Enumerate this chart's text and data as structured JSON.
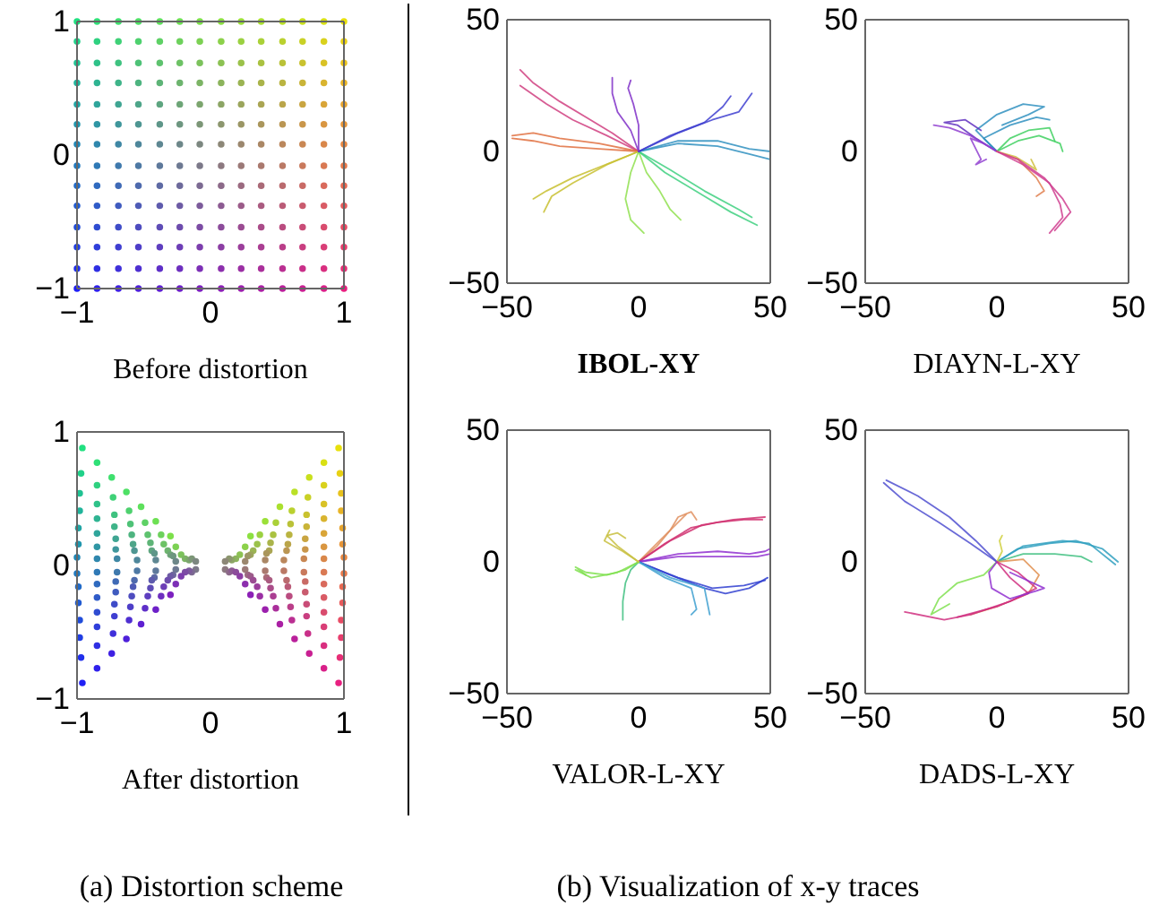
{
  "chart_data": [
    {
      "type": "scatter",
      "xlabel": "Before distortion",
      "marker": "circle",
      "annotations": [
        "(a) Distortion scheme"
      ],
      "xlim": [
        -1,
        1
      ],
      "ylim": [
        -1,
        1
      ],
      "xticks": [
        -1,
        0,
        1
      ],
      "yticks": [
        -1,
        0,
        1
      ],
      "x": [
        -1,
        -0.85,
        -0.69,
        -0.54,
        -0.38,
        -0.23,
        -0.08,
        0.08,
        0.23,
        0.38,
        0.54,
        0.69,
        0.85,
        1
      ],
      "series": [
        {
          "values": [
            1,
            1,
            1,
            1,
            1,
            1,
            1,
            1,
            1,
            1,
            1,
            1,
            1,
            1
          ],
          "colors": [
            "#20e080",
            "#2fe077",
            "#3fe06e",
            "#4ee065",
            "#5ee05c",
            "#6de053",
            "#7ce04a",
            "#8ce041",
            "#9be038",
            "#aae02f",
            "#bae026",
            "#c9e01d",
            "#d9e014",
            "#e8e00b"
          ]
        },
        {
          "values": [
            0.85,
            0.85,
            0.85,
            0.85,
            0.85,
            0.85,
            0.85,
            0.85,
            0.85,
            0.85,
            0.85,
            0.85,
            0.85,
            0.85
          ],
          "colors": [
            "#20d189",
            "#2fd180",
            "#3fd177",
            "#4ed16e",
            "#5ed165",
            "#6dd15c",
            "#7cd153",
            "#8cd14a",
            "#9bd141",
            "#aad138",
            "#bad12f",
            "#c9d126",
            "#d9d11d",
            "#e8d114"
          ]
        },
        {
          "values": [
            0.69,
            0.69,
            0.69,
            0.69,
            0.69,
            0.69,
            0.69,
            0.69,
            0.69,
            0.69,
            0.69,
            0.69,
            0.69,
            0.69
          ],
          "colors": [
            "#20c292",
            "#2fc289",
            "#3fc280",
            "#4ec277",
            "#5ec26e",
            "#6dc265",
            "#7cc25c",
            "#8cc253",
            "#9bc24a",
            "#aac241",
            "#bac238",
            "#c9c22f",
            "#d9c226",
            "#e8c21d"
          ]
        },
        {
          "values": [
            0.54,
            0.54,
            0.54,
            0.54,
            0.54,
            0.54,
            0.54,
            0.54,
            0.54,
            0.54,
            0.54,
            0.54,
            0.54,
            0.54
          ],
          "colors": [
            "#20b49b",
            "#2fb492",
            "#3fb489",
            "#4eb480",
            "#5eb477",
            "#6db46e",
            "#7cb465",
            "#8cb45c",
            "#9bb453",
            "#aab44a",
            "#bab441",
            "#c9b438",
            "#d9b42f",
            "#e8b426"
          ]
        },
        {
          "values": [
            0.38,
            0.38,
            0.38,
            0.38,
            0.38,
            0.38,
            0.38,
            0.38,
            0.38,
            0.38,
            0.38,
            0.38,
            0.38,
            0.38
          ],
          "colors": [
            "#20a5a4",
            "#2fa59b",
            "#3fa592",
            "#4ea589",
            "#5ea580",
            "#6da577",
            "#7ca56e",
            "#8ca565",
            "#9ba55c",
            "#aaa553",
            "#baa54a",
            "#c9a541",
            "#d9a538",
            "#e8a52f"
          ]
        },
        {
          "values": [
            0.23,
            0.23,
            0.23,
            0.23,
            0.23,
            0.23,
            0.23,
            0.23,
            0.23,
            0.23,
            0.23,
            0.23,
            0.23,
            0.23
          ],
          "colors": [
            "#2096ad",
            "#2f96a4",
            "#3f969b",
            "#4e9692",
            "#5e9689",
            "#6d9680",
            "#7c9677",
            "#8c966e",
            "#9b9665",
            "#aa965c",
            "#ba9653",
            "#c9964a",
            "#d99641",
            "#e89638"
          ]
        },
        {
          "values": [
            0.08,
            0.08,
            0.08,
            0.08,
            0.08,
            0.08,
            0.08,
            0.08,
            0.08,
            0.08,
            0.08,
            0.08,
            0.08,
            0.08
          ],
          "colors": [
            "#2087b6",
            "#2f87ad",
            "#3f87a4",
            "#4e879b",
            "#5e8792",
            "#6d8789",
            "#7c8780",
            "#8c8777",
            "#9b876e",
            "#aa8765",
            "#ba875c",
            "#c98753",
            "#d9874a",
            "#e88741"
          ]
        },
        {
          "values": [
            -0.08,
            -0.08,
            -0.08,
            -0.08,
            -0.08,
            -0.08,
            -0.08,
            -0.08,
            -0.08,
            -0.08,
            -0.08,
            -0.08,
            -0.08,
            -0.08
          ],
          "colors": [
            "#2079bf",
            "#2f79b6",
            "#3f79ad",
            "#4e79a4",
            "#5e799b",
            "#6d7992",
            "#7c7989",
            "#8c7980",
            "#9b7977",
            "#aa796e",
            "#ba7965",
            "#c9795c",
            "#d97953",
            "#e8794a"
          ]
        },
        {
          "values": [
            -0.23,
            -0.23,
            -0.23,
            -0.23,
            -0.23,
            -0.23,
            -0.23,
            -0.23,
            -0.23,
            -0.23,
            -0.23,
            -0.23,
            -0.23,
            -0.23
          ],
          "colors": [
            "#206ac8",
            "#2f6abf",
            "#3f6ab6",
            "#4e6aad",
            "#5e6aa4",
            "#6d6a9b",
            "#7c6a92",
            "#8c6a89",
            "#9b6a80",
            "#aa6a77",
            "#ba6a6e",
            "#c96a65",
            "#d96a5c",
            "#e86a53"
          ]
        },
        {
          "values": [
            -0.38,
            -0.38,
            -0.38,
            -0.38,
            -0.38,
            -0.38,
            -0.38,
            -0.38,
            -0.38,
            -0.38,
            -0.38,
            -0.38,
            -0.38,
            -0.38
          ],
          "colors": [
            "#205bd1",
            "#2f5bc8",
            "#3f5bbf",
            "#4e5bb6",
            "#5e5bad",
            "#6d5ba4",
            "#7c5b9b",
            "#8c5b92",
            "#9b5b89",
            "#aa5b80",
            "#ba5b77",
            "#c95b6e",
            "#d95b65",
            "#e85b5c"
          ]
        },
        {
          "values": [
            -0.54,
            -0.54,
            -0.54,
            -0.54,
            -0.54,
            -0.54,
            -0.54,
            -0.54,
            -0.54,
            -0.54,
            -0.54,
            -0.54,
            -0.54,
            -0.54
          ],
          "colors": [
            "#204cda",
            "#2f4cd1",
            "#3f4cc8",
            "#4e4cbf",
            "#5e4cb6",
            "#6d4cad",
            "#7c4ca4",
            "#8c4c9b",
            "#9b4c92",
            "#aa4c89",
            "#ba4c80",
            "#c94c77",
            "#d94c6e",
            "#e84c65"
          ]
        },
        {
          "values": [
            -0.69,
            -0.69,
            -0.69,
            -0.69,
            -0.69,
            -0.69,
            -0.69,
            -0.69,
            -0.69,
            -0.69,
            -0.69,
            -0.69,
            -0.69,
            -0.69
          ],
          "colors": [
            "#203ee3",
            "#2f3eda",
            "#3f3ed1",
            "#4e3ec8",
            "#5e3ebf",
            "#6d3eb6",
            "#7c3ead",
            "#8c3ea4",
            "#9b3e9b",
            "#aa3e92",
            "#ba3e89",
            "#c93e80",
            "#d93e77",
            "#e83e6e"
          ]
        },
        {
          "values": [
            -0.85,
            -0.85,
            -0.85,
            -0.85,
            -0.85,
            -0.85,
            -0.85,
            -0.85,
            -0.85,
            -0.85,
            -0.85,
            -0.85,
            -0.85,
            -0.85
          ],
          "colors": [
            "#202fec",
            "#2f2fe3",
            "#3f2fda",
            "#4e2fd1",
            "#5e2fc8",
            "#6d2fbf",
            "#7c2fb6",
            "#8c2fad",
            "#9b2fa4",
            "#aa2f9b",
            "#ba2f92",
            "#c92f89",
            "#d92f80",
            "#e82f77"
          ]
        },
        {
          "values": [
            -1,
            -1,
            -1,
            -1,
            -1,
            -1,
            -1,
            -1,
            -1,
            -1,
            -1,
            -1,
            -1,
            -1
          ],
          "colors": [
            "#2020f5",
            "#2f20ec",
            "#3f20e3",
            "#4e20da",
            "#5e20d1",
            "#6d20c8",
            "#7c20bf",
            "#8c20b6",
            "#9b20ad",
            "#aa20a4",
            "#ba209b",
            "#c92092",
            "#d92089",
            "#e82080"
          ]
        }
      ]
    },
    {
      "type": "scatter",
      "xlabel": "After distortion",
      "marker": "circle",
      "xlim": [
        -1,
        1
      ],
      "ylim": [
        -1,
        1
      ],
      "xticks": [
        -1,
        0,
        1
      ],
      "yticks": [
        -1,
        0,
        1
      ],
      "series": [
        {
          "x": [
            -0.96,
            -0.85,
            -0.74,
            -0.63,
            -0.52,
            -0.41,
            -0.3,
            0.3,
            0.41,
            0.52,
            0.63,
            0.74,
            0.85,
            0.96
          ],
          "values": [
            0.88,
            0.77,
            0.66,
            0.55,
            0.44,
            0.33,
            0.22,
            0.22,
            0.33,
            0.44,
            0.55,
            0.66,
            0.77,
            0.88
          ],
          "colors": [
            "#20e080",
            "#2fe077",
            "#3fe06e",
            "#4ee065",
            "#5ee05c",
            "#6de053",
            "#7ce04a",
            "#8ce041",
            "#9be038",
            "#aae02f",
            "#bae026",
            "#c9e01d",
            "#d9e014",
            "#e8e00b"
          ]
        },
        {
          "x": [
            -0.97,
            -0.85,
            -0.73,
            -0.61,
            -0.49,
            -0.37,
            -0.26,
            0.26,
            0.37,
            0.49,
            0.61,
            0.73,
            0.85,
            0.97
          ],
          "values": [
            0.69,
            0.6,
            0.51,
            0.41,
            0.32,
            0.23,
            0.14,
            0.14,
            0.23,
            0.32,
            0.41,
            0.51,
            0.6,
            0.69
          ],
          "colors": [
            "#20d189",
            "#2fd180",
            "#3fd177",
            "#4ed16e",
            "#5ed165",
            "#6dd15c",
            "#7cd153",
            "#8cd14a",
            "#9bd141",
            "#aad138",
            "#bad12f",
            "#c9d126",
            "#d9d11d",
            "#e8d114"
          ]
        },
        {
          "x": [
            -0.98,
            -0.85,
            -0.72,
            -0.6,
            -0.47,
            -0.35,
            -0.22,
            0.22,
            0.35,
            0.47,
            0.6,
            0.72,
            0.85,
            0.98
          ],
          "values": [
            0.54,
            0.46,
            0.38,
            0.31,
            0.23,
            0.16,
            0.08,
            0.08,
            0.16,
            0.23,
            0.31,
            0.38,
            0.46,
            0.54
          ],
          "colors": [
            "#20c292",
            "#2fc289",
            "#3fc280",
            "#4ec277",
            "#5ec26e",
            "#6dc265",
            "#7cc25c",
            "#8cc253",
            "#9bc24a",
            "#aac241",
            "#bac238",
            "#c9c22f",
            "#d9c226",
            "#e8c21d"
          ]
        },
        {
          "x": [
            -0.98,
            -0.85,
            -0.72,
            -0.59,
            -0.45,
            -0.32,
            -0.19,
            0.19,
            0.32,
            0.45,
            0.59,
            0.72,
            0.85,
            0.98
          ],
          "values": [
            0.41,
            0.35,
            0.29,
            0.23,
            0.17,
            0.11,
            0.05,
            0.05,
            0.11,
            0.17,
            0.23,
            0.29,
            0.35,
            0.41
          ],
          "colors": [
            "#20b49b",
            "#2fb492",
            "#3fb489",
            "#4eb480",
            "#5eb477",
            "#6db46e",
            "#7cb465",
            "#8cb45c",
            "#9bb453",
            "#aab44a",
            "#bab441",
            "#c9b438",
            "#d9b42f",
            "#e8b426"
          ]
        },
        {
          "x": [
            -0.99,
            -0.85,
            -0.71,
            -0.58,
            -0.44,
            -0.3,
            -0.16,
            0.16,
            0.3,
            0.44,
            0.58,
            0.71,
            0.85,
            0.99
          ],
          "values": [
            0.28,
            0.24,
            0.2,
            0.16,
            0.11,
            0.08,
            0.04,
            0.04,
            0.08,
            0.11,
            0.16,
            0.2,
            0.24,
            0.28
          ],
          "colors": [
            "#20a5a4",
            "#2fa59b",
            "#3fa592",
            "#4ea589",
            "#5ea580",
            "#6da577",
            "#7ca56e",
            "#8ca565",
            "#9ba55c",
            "#aaa553",
            "#baa54a",
            "#c9a541",
            "#d9a538",
            "#e8a52f"
          ]
        },
        {
          "x": [
            -0.99,
            -0.85,
            -0.71,
            -0.57,
            -0.42,
            -0.28,
            -0.14,
            0.14,
            0.28,
            0.42,
            0.57,
            0.71,
            0.85,
            0.99
          ],
          "values": [
            0.16,
            0.14,
            0.12,
            0.11,
            0.09,
            0.07,
            0.05,
            0.05,
            0.07,
            0.09,
            0.11,
            0.12,
            0.14,
            0.16
          ],
          "colors": [
            "#2096ad",
            "#2f96a4",
            "#3f969b",
            "#4e9692",
            "#5e9689",
            "#6d9680",
            "#7c9677",
            "#8c966e",
            "#9b9665",
            "#aa965c",
            "#ba9653",
            "#c9964a",
            "#d99641",
            "#e89638"
          ]
        },
        {
          "x": [
            -1,
            -0.85,
            -0.7,
            -0.55,
            -0.41,
            -0.26,
            -0.11,
            0.11,
            0.26,
            0.41,
            0.55,
            0.7,
            0.85,
            1
          ],
          "values": [
            0.06,
            0.05,
            0.05,
            0.04,
            0.04,
            0.03,
            0.03,
            0.03,
            0.03,
            0.04,
            0.04,
            0.05,
            0.05,
            0.06
          ],
          "colors": [
            "#2087b6",
            "#2f87ad",
            "#3f87a4",
            "#4e879b",
            "#5e8792",
            "#6d8789",
            "#7c8780",
            "#8c8777",
            "#9b876e",
            "#aa8765",
            "#ba875c",
            "#c98753",
            "#d9874a",
            "#e88741"
          ]
        },
        {
          "x": [
            -1,
            -0.85,
            -0.7,
            -0.55,
            -0.41,
            -0.26,
            -0.11,
            0.11,
            0.26,
            0.41,
            0.55,
            0.7,
            0.85,
            1
          ],
          "values": [
            -0.06,
            -0.05,
            -0.05,
            -0.04,
            -0.04,
            -0.03,
            -0.03,
            -0.03,
            -0.03,
            -0.04,
            -0.04,
            -0.05,
            -0.05,
            -0.06
          ],
          "colors": [
            "#2079bf",
            "#2f79b6",
            "#3f79ad",
            "#4e79a4",
            "#5e799b",
            "#6d7992",
            "#7c7989",
            "#8c7980",
            "#9b7977",
            "#aa796e",
            "#ba7965",
            "#c9795c",
            "#d97953",
            "#e8794a"
          ]
        },
        {
          "x": [
            -0.99,
            -0.85,
            -0.71,
            -0.57,
            -0.42,
            -0.28,
            -0.14,
            0.14,
            0.28,
            0.42,
            0.57,
            0.71,
            0.85,
            0.99
          ],
          "values": [
            -0.16,
            -0.14,
            -0.12,
            -0.11,
            -0.09,
            -0.07,
            -0.05,
            -0.05,
            -0.07,
            -0.09,
            -0.11,
            -0.12,
            -0.14,
            -0.16
          ],
          "colors": [
            "#206ac8",
            "#2f6abf",
            "#3f6ab6",
            "#4e6aad",
            "#5e6aa4",
            "#6d6a9b",
            "#7c6a92",
            "#8c6a89",
            "#9b6a80",
            "#aa6a77",
            "#ba6a6e",
            "#c96a65",
            "#d96a5c",
            "#e86a53"
          ]
        },
        {
          "x": [
            -0.99,
            -0.85,
            -0.71,
            -0.58,
            -0.44,
            -0.3,
            -0.16,
            0.16,
            0.3,
            0.44,
            0.58,
            0.71,
            0.85,
            0.99
          ],
          "values": [
            -0.28,
            -0.24,
            -0.2,
            -0.16,
            -0.11,
            -0.08,
            -0.04,
            -0.04,
            -0.08,
            -0.11,
            -0.16,
            -0.2,
            -0.24,
            -0.28
          ],
          "colors": [
            "#205bd1",
            "#2f5bc8",
            "#3f5bbf",
            "#4e5bb6",
            "#5e5bad",
            "#6d5ba4",
            "#7c5b9b",
            "#8c5b92",
            "#9b5b89",
            "#aa5b80",
            "#ba5b77",
            "#c95b6e",
            "#d95b65",
            "#e85b5c"
          ]
        },
        {
          "x": [
            -0.98,
            -0.85,
            -0.72,
            -0.59,
            -0.45,
            -0.32,
            -0.19,
            0.19,
            0.32,
            0.45,
            0.59,
            0.72,
            0.85,
            0.98
          ],
          "values": [
            -0.41,
            -0.35,
            -0.29,
            -0.23,
            -0.17,
            -0.11,
            -0.05,
            -0.05,
            -0.11,
            -0.17,
            -0.23,
            -0.29,
            -0.35,
            -0.41
          ],
          "colors": [
            "#204cda",
            "#2f4cd1",
            "#3f4cc8",
            "#4e4cbf",
            "#5e4cb6",
            "#6d4cad",
            "#7c4ca4",
            "#8c4c9b",
            "#9b4c92",
            "#aa4c89",
            "#ba4c80",
            "#c94c77",
            "#d94c6e",
            "#e84c65"
          ]
        },
        {
          "x": [
            -0.98,
            -0.85,
            -0.72,
            -0.6,
            -0.47,
            -0.35,
            -0.22,
            0.22,
            0.35,
            0.47,
            0.6,
            0.72,
            0.85,
            0.98
          ],
          "values": [
            -0.54,
            -0.46,
            -0.38,
            -0.31,
            -0.23,
            -0.16,
            -0.08,
            -0.08,
            -0.16,
            -0.23,
            -0.31,
            -0.38,
            -0.46,
            -0.54
          ],
          "colors": [
            "#203ee3",
            "#2f3eda",
            "#3f3ed1",
            "#4e3ec8",
            "#5e3ebf",
            "#6d3eb6",
            "#7c3ead",
            "#8c3ea4",
            "#9b3e9b",
            "#aa3e92",
            "#ba3e89",
            "#c93e80",
            "#d93e77",
            "#e83e6e"
          ]
        },
        {
          "x": [
            -0.97,
            -0.85,
            -0.73,
            -0.61,
            -0.49,
            -0.37,
            -0.26,
            0.26,
            0.37,
            0.49,
            0.61,
            0.73,
            0.85,
            0.97
          ],
          "values": [
            -0.69,
            -0.6,
            -0.51,
            -0.41,
            -0.32,
            -0.23,
            -0.14,
            -0.14,
            -0.23,
            -0.32,
            -0.41,
            -0.51,
            -0.6,
            -0.69
          ],
          "colors": [
            "#202fec",
            "#2f2fe3",
            "#3f2fda",
            "#4e2fd1",
            "#5e2fc8",
            "#6d2fbf",
            "#7c2fb6",
            "#8c2fad",
            "#9b2fa4",
            "#aa2f9b",
            "#ba2f92",
            "#c92f89",
            "#d92f80",
            "#e82f77"
          ]
        },
        {
          "x": [
            -0.96,
            -0.85,
            -0.74,
            -0.63,
            -0.52,
            -0.41,
            -0.3,
            0.3,
            0.41,
            0.52,
            0.63,
            0.74,
            0.85,
            0.96
          ],
          "values": [
            -0.88,
            -0.77,
            -0.66,
            -0.55,
            -0.44,
            -0.33,
            -0.22,
            -0.22,
            -0.33,
            -0.44,
            -0.55,
            -0.66,
            -0.77,
            -0.88
          ],
          "colors": [
            "#2020f5",
            "#2f20ec",
            "#3f20e3",
            "#4e20da",
            "#5e20d1",
            "#6d20c8",
            "#7c20bf",
            "#8c20b6",
            "#9b20ad",
            "#aa20a4",
            "#ba209b",
            "#c92092",
            "#d92089",
            "#e82080"
          ]
        }
      ]
    },
    {
      "type": "line",
      "xlabel": "IBOL-XY",
      "annotations": [
        "(b) Visualization of x-y traces"
      ],
      "xlim": [
        -50,
        50
      ],
      "ylim": [
        -50,
        50
      ],
      "xticks": [
        -50,
        0,
        50
      ],
      "yticks": [
        -50,
        0,
        50
      ],
      "series": [
        {
          "color": "#d04080",
          "x": [
            0,
            -10,
            -20,
            -30,
            -40,
            -45
          ],
          "values": [
            0,
            7,
            13,
            19,
            26,
            31
          ]
        },
        {
          "color": "#d04080",
          "x": [
            0,
            -12,
            -25,
            -35,
            -45
          ],
          "values": [
            0,
            6,
            12,
            18,
            25
          ]
        },
        {
          "color": "#e07040",
          "x": [
            0,
            -15,
            -30,
            -40,
            -48
          ],
          "values": [
            0,
            3,
            5,
            7,
            6
          ]
        },
        {
          "color": "#e07040",
          "x": [
            0,
            -15,
            -30,
            -40,
            -48
          ],
          "values": [
            0,
            1,
            2,
            4,
            5
          ]
        },
        {
          "color": "#c8c030",
          "x": [
            0,
            -10,
            -25,
            -35,
            -40
          ],
          "values": [
            0,
            -4,
            -10,
            -15,
            -18
          ]
        },
        {
          "color": "#c8c030",
          "x": [
            0,
            -12,
            -25,
            -33,
            -36
          ],
          "values": [
            0,
            -5,
            -12,
            -17,
            -23
          ]
        },
        {
          "color": "#90e050",
          "x": [
            0,
            -3,
            -5,
            -3,
            2
          ],
          "values": [
            0,
            -8,
            -18,
            -26,
            -31
          ]
        },
        {
          "color": "#90e050",
          "x": [
            0,
            3,
            8,
            12,
            16
          ],
          "values": [
            0,
            -8,
            -15,
            -22,
            -26
          ]
        },
        {
          "color": "#40d080",
          "x": [
            0,
            10,
            25,
            35,
            45
          ],
          "values": [
            0,
            -8,
            -17,
            -23,
            -28
          ]
        },
        {
          "color": "#40d080",
          "x": [
            0,
            12,
            25,
            38,
            43
          ],
          "values": [
            0,
            -7,
            -15,
            -22,
            -25
          ]
        },
        {
          "color": "#3090c0",
          "x": [
            0,
            15,
            30,
            42,
            50
          ],
          "values": [
            0,
            4,
            4,
            1,
            0
          ]
        },
        {
          "color": "#3090c0",
          "x": [
            0,
            15,
            30,
            42,
            50
          ],
          "values": [
            0,
            3,
            2,
            -1,
            -3
          ]
        },
        {
          "color": "#4040d0",
          "x": [
            0,
            12,
            25,
            32,
            35
          ],
          "values": [
            0,
            6,
            11,
            17,
            21
          ]
        },
        {
          "color": "#4040d0",
          "x": [
            0,
            15,
            28,
            38,
            43
          ],
          "values": [
            0,
            7,
            12,
            15,
            22
          ]
        },
        {
          "color": "#8030c8",
          "x": [
            0,
            -3,
            -8,
            -10,
            -10
          ],
          "values": [
            0,
            8,
            15,
            22,
            28
          ]
        },
        {
          "color": "#8030c8",
          "x": [
            0,
            0,
            -2,
            -4,
            -3
          ],
          "values": [
            0,
            10,
            18,
            24,
            27
          ]
        }
      ]
    },
    {
      "type": "line",
      "xlabel": "DIAYN-L-XY",
      "xlim": [
        -50,
        50
      ],
      "ylim": [
        -50,
        50
      ],
      "xticks": [
        -50,
        0,
        50
      ],
      "yticks": [
        -50,
        0,
        50
      ],
      "series": [
        {
          "color": "#3090c0",
          "x": [
            0,
            -8,
            0,
            10,
            18,
            12,
            2
          ],
          "values": [
            0,
            8,
            14,
            18,
            17,
            14,
            10
          ]
        },
        {
          "color": "#3090c0",
          "x": [
            0,
            -5,
            5,
            15,
            20
          ],
          "values": [
            0,
            5,
            10,
            13,
            12
          ]
        },
        {
          "color": "#6030c0",
          "x": [
            0,
            -8,
            -15,
            -20,
            -12,
            -6
          ],
          "values": [
            0,
            5,
            10,
            11,
            12,
            8
          ]
        },
        {
          "color": "#9040d0",
          "x": [
            0,
            -5,
            -10,
            -6,
            -8,
            -4
          ],
          "values": [
            0,
            3,
            5,
            -3,
            -5,
            -3
          ]
        },
        {
          "color": "#9040d0",
          "x": [
            0,
            -10,
            -18,
            -24
          ],
          "values": [
            0,
            6,
            9,
            10
          ]
        },
        {
          "color": "#40d060",
          "x": [
            0,
            5,
            12,
            20,
            22
          ],
          "values": [
            0,
            5,
            8,
            9,
            4
          ]
        },
        {
          "color": "#40d060",
          "x": [
            0,
            8,
            16,
            24,
            25
          ],
          "values": [
            0,
            4,
            6,
            3,
            0
          ]
        },
        {
          "color": "#d0c040",
          "x": [
            0,
            7,
            12,
            15,
            13
          ],
          "values": [
            0,
            -2,
            -5,
            -7,
            -3
          ]
        },
        {
          "color": "#e08050",
          "x": [
            0,
            8,
            15,
            18,
            15
          ],
          "values": [
            0,
            -3,
            -10,
            -15,
            -17
          ]
        },
        {
          "color": "#d04090",
          "x": [
            0,
            8,
            18,
            25,
            28,
            22
          ],
          "values": [
            0,
            -3,
            -10,
            -18,
            -23,
            -30
          ]
        },
        {
          "color": "#d04090",
          "x": [
            0,
            10,
            20,
            24,
            25,
            20
          ],
          "values": [
            0,
            -5,
            -12,
            -20,
            -25,
            -31
          ]
        }
      ]
    },
    {
      "type": "line",
      "xlabel": "VALOR-L-XY",
      "xlim": [
        -50,
        50
      ],
      "ylim": [
        -50,
        50
      ],
      "xticks": [
        -50,
        0,
        50
      ],
      "yticks": [
        -50,
        0,
        50
      ],
      "series": [
        {
          "color": "#e09060",
          "x": [
            0,
            7,
            12,
            15,
            20,
            22
          ],
          "values": [
            0,
            6,
            12,
            17,
            19,
            16
          ]
        },
        {
          "color": "#e09060",
          "x": [
            0,
            8,
            14,
            18
          ],
          "values": [
            0,
            8,
            14,
            18
          ]
        },
        {
          "color": "#d03070",
          "x": [
            0,
            10,
            20,
            30,
            40,
            47
          ],
          "values": [
            0,
            7,
            13,
            15,
            16,
            16
          ]
        },
        {
          "color": "#d03070",
          "x": [
            0,
            12,
            24,
            36,
            48
          ],
          "values": [
            0,
            8,
            14,
            16,
            17
          ]
        },
        {
          "color": "#9030d0",
          "x": [
            0,
            15,
            30,
            42,
            48,
            50
          ],
          "values": [
            0,
            3,
            4,
            3,
            4,
            5
          ]
        },
        {
          "color": "#9030d0",
          "x": [
            0,
            15,
            30,
            45,
            50
          ],
          "values": [
            0,
            2,
            2,
            2,
            3
          ]
        },
        {
          "color": "#3040d0",
          "x": [
            0,
            12,
            25,
            33,
            42,
            49
          ],
          "values": [
            0,
            -5,
            -10,
            -12,
            -10,
            -6
          ]
        },
        {
          "color": "#3040d0",
          "x": [
            0,
            15,
            28,
            40,
            48
          ],
          "values": [
            0,
            -6,
            -10,
            -9,
            -7
          ]
        },
        {
          "color": "#40a0d0",
          "x": [
            0,
            10,
            20,
            22,
            20
          ],
          "values": [
            0,
            -6,
            -10,
            -18,
            -20
          ]
        },
        {
          "color": "#40a0d0",
          "x": [
            0,
            12,
            25,
            27
          ],
          "values": [
            0,
            -6,
            -10,
            -20
          ]
        },
        {
          "color": "#40c080",
          "x": [
            0,
            -3,
            -5,
            -6,
            -6
          ],
          "values": [
            0,
            -3,
            -8,
            -15,
            -22
          ]
        },
        {
          "color": "#80e050",
          "x": [
            0,
            -5,
            -12,
            -20,
            -24,
            -20
          ],
          "values": [
            0,
            -3,
            -5,
            -4,
            -2,
            -5
          ]
        },
        {
          "color": "#80e050",
          "x": [
            0,
            -8,
            -18,
            -24
          ],
          "values": [
            0,
            -4,
            -6,
            -3
          ]
        },
        {
          "color": "#c8c040",
          "x": [
            0,
            -4,
            -8,
            -12,
            -8,
            -5
          ],
          "values": [
            0,
            3,
            6,
            10,
            11,
            9
          ]
        },
        {
          "color": "#c8c040",
          "x": [
            0,
            -6,
            -13,
            -11
          ],
          "values": [
            0,
            4,
            8,
            12
          ]
        }
      ]
    },
    {
      "type": "line",
      "xlabel": "DADS-L-XY",
      "xlim": [
        -50,
        50
      ],
      "ylim": [
        -50,
        50
      ],
      "xticks": [
        -50,
        0,
        50
      ],
      "yticks": [
        -50,
        0,
        50
      ],
      "series": [
        {
          "color": "#5050d0",
          "x": [
            0,
            -8,
            -18,
            -30,
            -42
          ],
          "values": [
            0,
            8,
            17,
            25,
            31
          ]
        },
        {
          "color": "#5050d0",
          "x": [
            0,
            -10,
            -22,
            -35,
            -43
          ],
          "values": [
            0,
            7,
            15,
            23,
            30
          ]
        },
        {
          "color": "#30a0c0",
          "x": [
            0,
            8,
            20,
            30,
            40,
            46
          ],
          "values": [
            0,
            5,
            7,
            8,
            5,
            0
          ]
        },
        {
          "color": "#30a0c0",
          "x": [
            0,
            10,
            25,
            35,
            45
          ],
          "values": [
            0,
            6,
            8,
            7,
            -1
          ]
        },
        {
          "color": "#40c080",
          "x": [
            0,
            10,
            22,
            32,
            36
          ],
          "values": [
            0,
            3,
            3,
            2,
            0
          ]
        },
        {
          "color": "#d0d040",
          "x": [
            0,
            2,
            1,
            2
          ],
          "values": [
            0,
            4,
            8,
            10
          ]
        },
        {
          "color": "#80e050",
          "x": [
            0,
            -5,
            -15,
            -22,
            -25,
            -18
          ],
          "values": [
            0,
            -5,
            -8,
            -14,
            -20,
            -16
          ]
        },
        {
          "color": "#e09050",
          "x": [
            0,
            10,
            16,
            12,
            0,
            -10
          ],
          "values": [
            0,
            1,
            -5,
            -12,
            -17,
            -20
          ]
        },
        {
          "color": "#d03080",
          "x": [
            0,
            8,
            15,
            5,
            -10,
            -20,
            -35
          ],
          "values": [
            0,
            -4,
            -10,
            -15,
            -20,
            -22,
            -19
          ]
        },
        {
          "color": "#d03080",
          "x": [
            0,
            5,
            12,
            0,
            -15
          ],
          "values": [
            0,
            -6,
            -12,
            -17,
            -21
          ]
        },
        {
          "color": "#9030d0",
          "x": [
            0,
            -3,
            -2,
            5,
            15,
            18,
            5
          ],
          "values": [
            0,
            -4,
            -10,
            -14,
            -11,
            -10,
            -4
          ]
        }
      ]
    }
  ]
}
